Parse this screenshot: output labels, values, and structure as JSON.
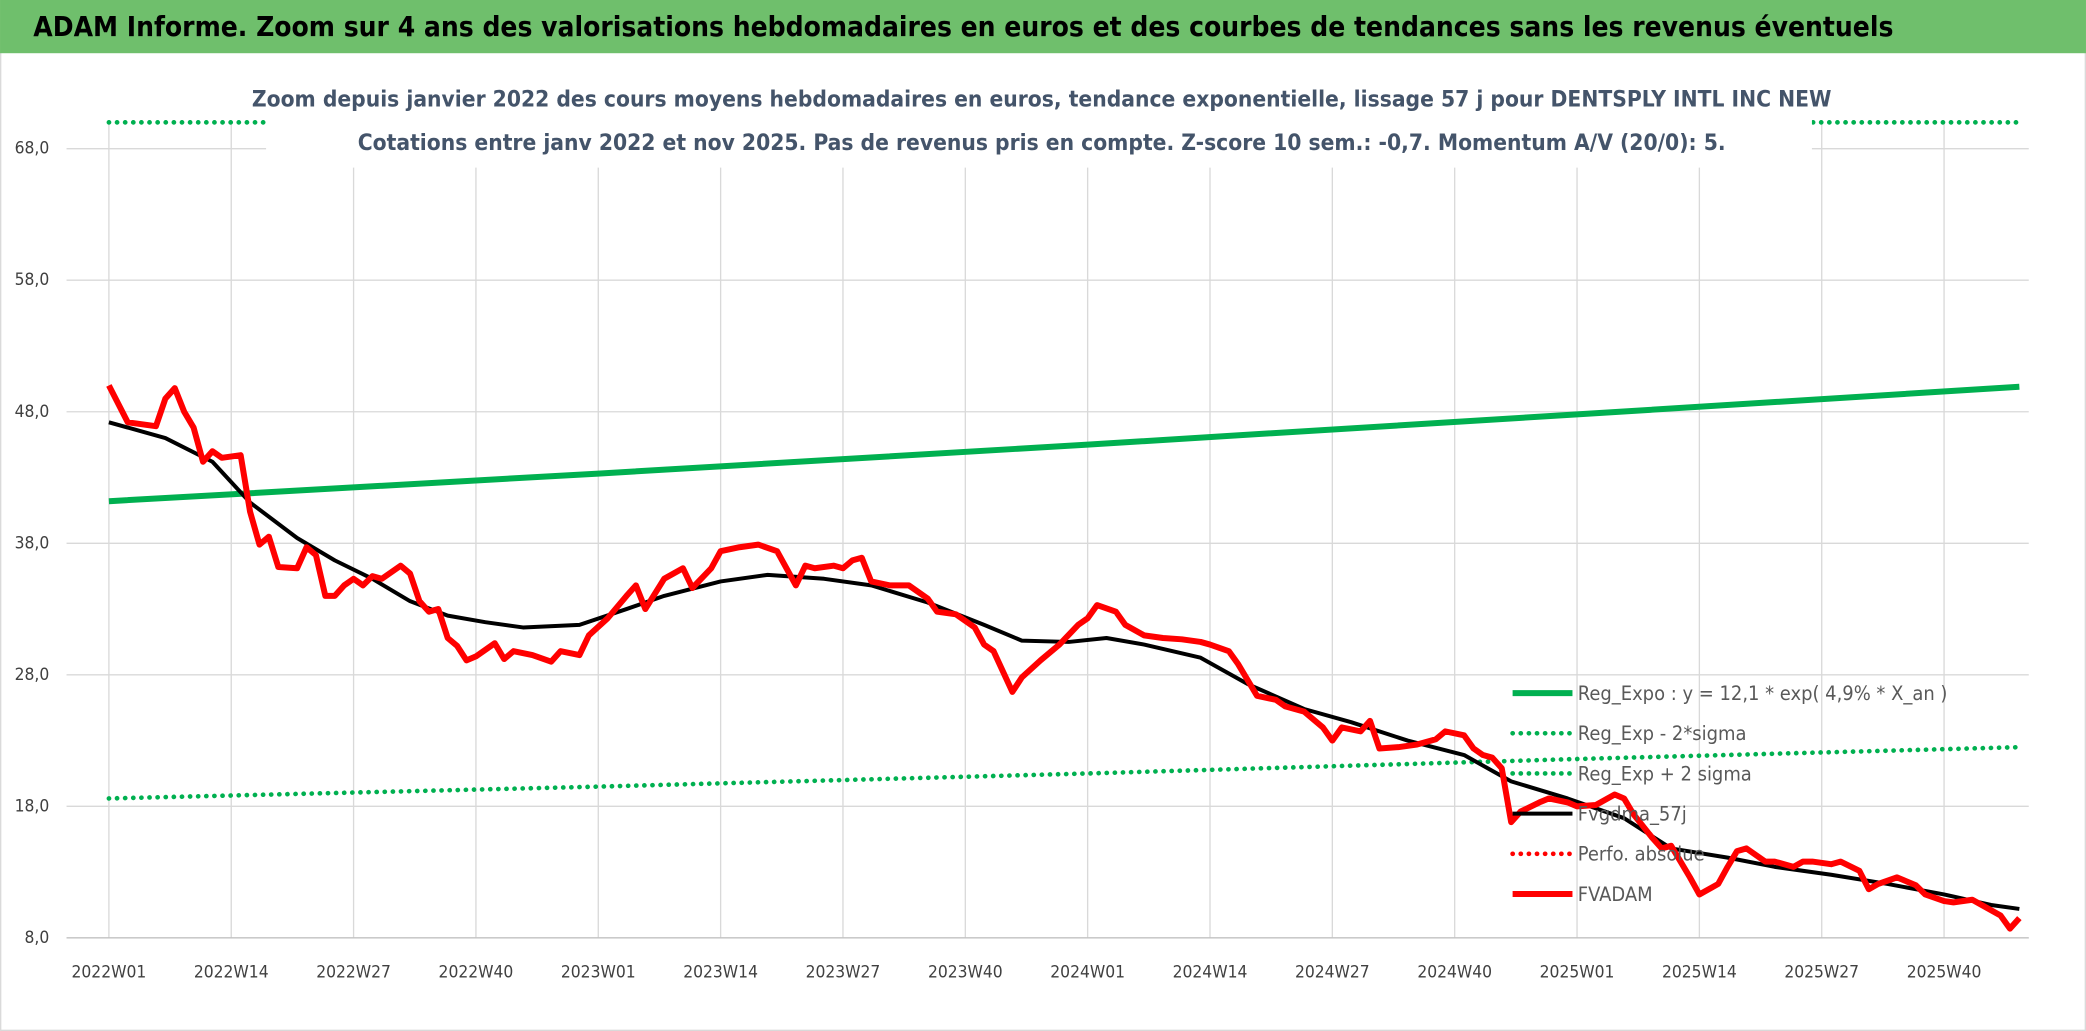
{
  "banner": "ADAM Informe. Zoom sur 4 ans des valorisations hebdomadaires en euros et des courbes de tendances sans les revenus éventuels",
  "chart_data": {
    "type": "line",
    "title": "Zoom depuis janvier 2022 des cours moyens hebdomadaires en euros, tendance exponentielle, lissage 57 j pour DENTSPLY INTL INC NEW",
    "subtitle": "Cotations entre janv 2022 et nov 2025. Pas de revenus pris en compte. Z-score 10 sem.: -0,7. Momentum A/V (20/0): 5.",
    "xlim": [
      -4.5,
      204
    ],
    "xticks": [
      {
        "value": 0,
        "label": "2022W01"
      },
      {
        "value": 13,
        "label": "2022W14"
      },
      {
        "value": 26,
        "label": "2022W27"
      },
      {
        "value": 39,
        "label": "2022W40"
      },
      {
        "value": 52,
        "label": "2023W01"
      },
      {
        "value": 65,
        "label": "2023W14"
      },
      {
        "value": 78,
        "label": "2023W27"
      },
      {
        "value": 91,
        "label": "2023W40"
      },
      {
        "value": 104,
        "label": "2024W01"
      },
      {
        "value": 117,
        "label": "2024W14"
      },
      {
        "value": 130,
        "label": "2024W27"
      },
      {
        "value": 143,
        "label": "2024W40"
      },
      {
        "value": 156,
        "label": "2025W01"
      },
      {
        "value": 169,
        "label": "2025W14"
      },
      {
        "value": 182,
        "label": "2025W27"
      },
      {
        "value": 195,
        "label": "2025W40"
      }
    ],
    "ylim": [
      8,
      70
    ],
    "yticks": [
      {
        "value": 8,
        "label": "8,0"
      },
      {
        "value": 18,
        "label": "18,0"
      },
      {
        "value": 28,
        "label": "28,0"
      },
      {
        "value": 38,
        "label": "38,0"
      },
      {
        "value": 48,
        "label": "48,0"
      },
      {
        "value": 58,
        "label": "58,0"
      },
      {
        "value": 68,
        "label": "68,0"
      }
    ],
    "grid": true,
    "legend": "lower right",
    "series": [
      {
        "name": "Reg_Expo : y = 12,1 * exp( 4,9% *  X_an )",
        "color": "#00b050",
        "line_style": "solid",
        "x": [
          0,
          52,
          104,
          156,
          203
        ],
        "values": [
          41.2,
          43.3,
          45.5,
          47.8,
          49.9
        ]
      },
      {
        "name": "Reg_Exp - 2*sigma",
        "color": "#00b050",
        "line_style": "dotted",
        "x": [
          0,
          52,
          104,
          156,
          203
        ],
        "values": [
          18.6,
          19.5,
          20.5,
          21.6,
          22.5
        ]
      },
      {
        "name": "Reg_Exp + 2 sigma",
        "color": "#00b050",
        "line_style": "dotted",
        "x": [
          0,
          52,
          104,
          156,
          203
        ],
        "values": [
          70,
          70,
          70,
          70,
          70
        ]
      },
      {
        "name": "Fvgdma_57j",
        "color": "#000000",
        "line_style": "solid",
        "x": [
          0,
          6,
          11,
          15,
          20,
          24,
          28,
          32,
          36,
          40,
          44,
          50,
          55,
          59,
          65,
          70,
          76,
          81,
          87,
          93,
          97,
          102,
          106,
          110,
          116,
          121,
          127,
          132,
          138,
          144,
          149,
          155,
          161,
          166,
          172,
          177,
          183,
          189,
          195,
          200,
          203
        ],
        "values": [
          47.2,
          46.0,
          44.2,
          41.1,
          38.4,
          36.7,
          35.3,
          33.6,
          32.5,
          32.0,
          31.6,
          31.8,
          33.0,
          34.0,
          35.1,
          35.6,
          35.3,
          34.8,
          33.5,
          31.8,
          30.6,
          30.5,
          30.8,
          30.3,
          29.3,
          27.3,
          25.4,
          24.4,
          23.0,
          21.9,
          19.9,
          18.6,
          17.1,
          14.8,
          14.1,
          13.4,
          12.8,
          12.1,
          11.3,
          10.5,
          10.2
        ]
      },
      {
        "name": "Perfo. absolue",
        "color": "#ff0000",
        "line_style": "dotted",
        "x": [],
        "values": []
      },
      {
        "name": "FVADAM",
        "color": "#ff0000",
        "line_style": "thick",
        "x": [
          0,
          2,
          5,
          6,
          7,
          8,
          9,
          10,
          11,
          12,
          14,
          15,
          16,
          17,
          18,
          20,
          21,
          22,
          23,
          24,
          25,
          26,
          27,
          28,
          29,
          31,
          32,
          33,
          34,
          35,
          36,
          37,
          38,
          39,
          41,
          42,
          43,
          45,
          47,
          48,
          50,
          51,
          53,
          55,
          56,
          57,
          59,
          61,
          62,
          64,
          65,
          67,
          69,
          71,
          72,
          73,
          74,
          75,
          77,
          78,
          79,
          80,
          81,
          83,
          85,
          87,
          88,
          90,
          92,
          93,
          94,
          96,
          97,
          99,
          101,
          103,
          104,
          105,
          107,
          108,
          110,
          112,
          114,
          116,
          117,
          119,
          120,
          122,
          124,
          125,
          127,
          129,
          130,
          131,
          133,
          134,
          135,
          137,
          139,
          141,
          142,
          144,
          145,
          146,
          147,
          148,
          149,
          150,
          152,
          153,
          155,
          156,
          158,
          160,
          161,
          162,
          164,
          165,
          166,
          168,
          169,
          171,
          172,
          173,
          174,
          176,
          177,
          179,
          180,
          181,
          183,
          184,
          186,
          187,
          188,
          190,
          192,
          193,
          195,
          196,
          198,
          199,
          201,
          202,
          203
        ],
        "values": [
          50.0,
          47.2,
          46.9,
          49.0,
          49.8,
          48.0,
          46.8,
          44.2,
          45.0,
          44.5,
          44.7,
          40.4,
          37.9,
          38.5,
          36.2,
          36.1,
          37.7,
          37.1,
          34.0,
          34.0,
          34.8,
          35.3,
          34.8,
          35.5,
          35.3,
          36.3,
          35.7,
          33.6,
          32.8,
          33.0,
          30.8,
          30.2,
          29.1,
          29.4,
          30.4,
          29.2,
          29.8,
          29.5,
          29.0,
          29.8,
          29.5,
          31.0,
          32.3,
          34.0,
          34.8,
          33.0,
          35.3,
          36.1,
          34.6,
          36.1,
          37.4,
          37.7,
          37.9,
          37.4,
          36.1,
          34.8,
          36.3,
          36.1,
          36.3,
          36.1,
          36.7,
          36.9,
          35.1,
          34.8,
          34.8,
          33.8,
          32.8,
          32.6,
          31.6,
          30.3,
          29.8,
          26.7,
          27.8,
          29.1,
          30.3,
          31.8,
          32.3,
          33.3,
          32.8,
          31.8,
          31.0,
          30.8,
          30.7,
          30.5,
          30.3,
          29.8,
          28.8,
          26.4,
          26.1,
          25.6,
          25.2,
          24.0,
          23.0,
          24.0,
          23.7,
          24.5,
          22.4,
          22.5,
          22.7,
          23.1,
          23.7,
          23.4,
          22.4,
          21.9,
          21.7,
          20.9,
          16.8,
          17.6,
          18.3,
          18.6,
          18.3,
          18.0,
          18.1,
          18.9,
          18.6,
          17.4,
          15.6,
          14.8,
          15.0,
          12.6,
          11.3,
          12.1,
          13.4,
          14.6,
          14.8,
          13.8,
          13.8,
          13.4,
          13.8,
          13.8,
          13.6,
          13.8,
          13.1,
          11.7,
          12.1,
          12.6,
          12.0,
          11.3,
          10.8,
          10.7,
          10.9,
          10.5,
          9.7,
          8.7,
          9.5
        ]
      }
    ]
  }
}
